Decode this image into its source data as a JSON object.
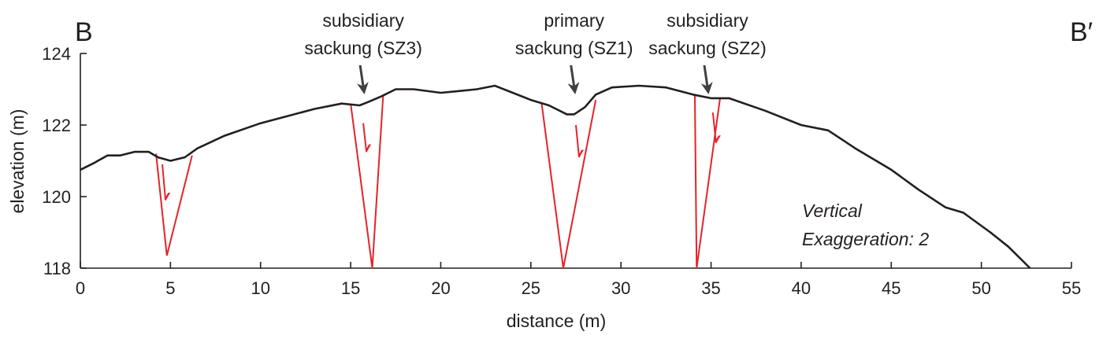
{
  "chart_data": {
    "type": "line",
    "xlabel": "distance (m)",
    "ylabel": "elevation (m)",
    "xlim": [
      0,
      55
    ],
    "ylim": [
      118,
      124
    ],
    "xticks": [
      0,
      5,
      10,
      15,
      20,
      25,
      30,
      35,
      40,
      45,
      50,
      55
    ],
    "yticks": [
      118,
      120,
      122,
      124
    ],
    "section_start_label": "B",
    "section_end_label": "B′",
    "note_lines": [
      "Vertical",
      "Exaggeration: 2"
    ],
    "profile": {
      "x": [
        0,
        0.8,
        1.5,
        2.2,
        3.0,
        3.8,
        4.3,
        5.0,
        5.8,
        6.5,
        8.0,
        10.0,
        11.5,
        13.0,
        14.5,
        15.5,
        16.0,
        16.7,
        17.5,
        18.5,
        20.0,
        21.0,
        22.0,
        23.0,
        24.0,
        25.0,
        26.0,
        27.0,
        27.4,
        28.0,
        28.6,
        29.5,
        31.0,
        32.5,
        34.0,
        35.0,
        36.0,
        38.0,
        40.0,
        41.5,
        43.0,
        45.0,
        46.5,
        48.0,
        49.0,
        50.5,
        51.5,
        52.7
      ],
      "y": [
        120.75,
        120.95,
        121.15,
        121.15,
        121.25,
        121.25,
        121.1,
        121.0,
        121.1,
        121.35,
        121.7,
        122.05,
        122.25,
        122.45,
        122.6,
        122.55,
        122.65,
        122.8,
        123.0,
        123.0,
        122.9,
        122.95,
        123.0,
        123.1,
        122.9,
        122.7,
        122.55,
        122.3,
        122.3,
        122.5,
        122.85,
        123.05,
        123.1,
        123.05,
        122.85,
        122.75,
        122.75,
        122.4,
        122.0,
        121.85,
        121.35,
        120.75,
        120.2,
        119.7,
        119.55,
        119.0,
        118.6,
        118.0
      ]
    },
    "annotations": [
      {
        "lines": [
          "subsidiary",
          "sackung (SZ3)"
        ],
        "x": 15.7
      },
      {
        "lines": [
          "primary",
          "sackung (SZ1)"
        ],
        "x": 27.4
      },
      {
        "lines": [
          "subsidiary",
          "sackung (SZ2)"
        ],
        "x": 34.8
      }
    ],
    "faults": [
      {
        "name": "fault near 5 m",
        "left_top": [
          4.2,
          121.2
        ],
        "right_top": [
          6.2,
          121.15
        ],
        "bottom": [
          4.8,
          118.35
        ],
        "arrow_x": 4.55,
        "arrow_y": [
          120.9,
          119.9
        ]
      },
      {
        "name": "fault SZ3",
        "left_top": [
          15.0,
          122.6
        ],
        "right_top": [
          16.8,
          122.8
        ],
        "bottom": [
          16.2,
          118.0
        ],
        "arrow_x": 15.7,
        "arrow_y": [
          122.05,
          121.25
        ]
      },
      {
        "name": "fault SZ1",
        "left_top": [
          25.6,
          122.6
        ],
        "right_top": [
          28.6,
          122.7
        ],
        "bottom": [
          26.8,
          118.0
        ],
        "arrow_x": 27.5,
        "arrow_y": [
          122.0,
          121.1
        ]
      },
      {
        "name": "fault SZ2",
        "left_top": [
          34.1,
          122.85
        ],
        "right_top": [
          35.5,
          122.75
        ],
        "bottom": [
          34.2,
          118.0
        ],
        "arrow_x": 35.1,
        "arrow_y": [
          122.35,
          121.5
        ]
      }
    ],
    "colors": {
      "profile": "#231f20",
      "fault": "#e52329",
      "axis": "#231f20",
      "arrow": "#404040"
    }
  }
}
